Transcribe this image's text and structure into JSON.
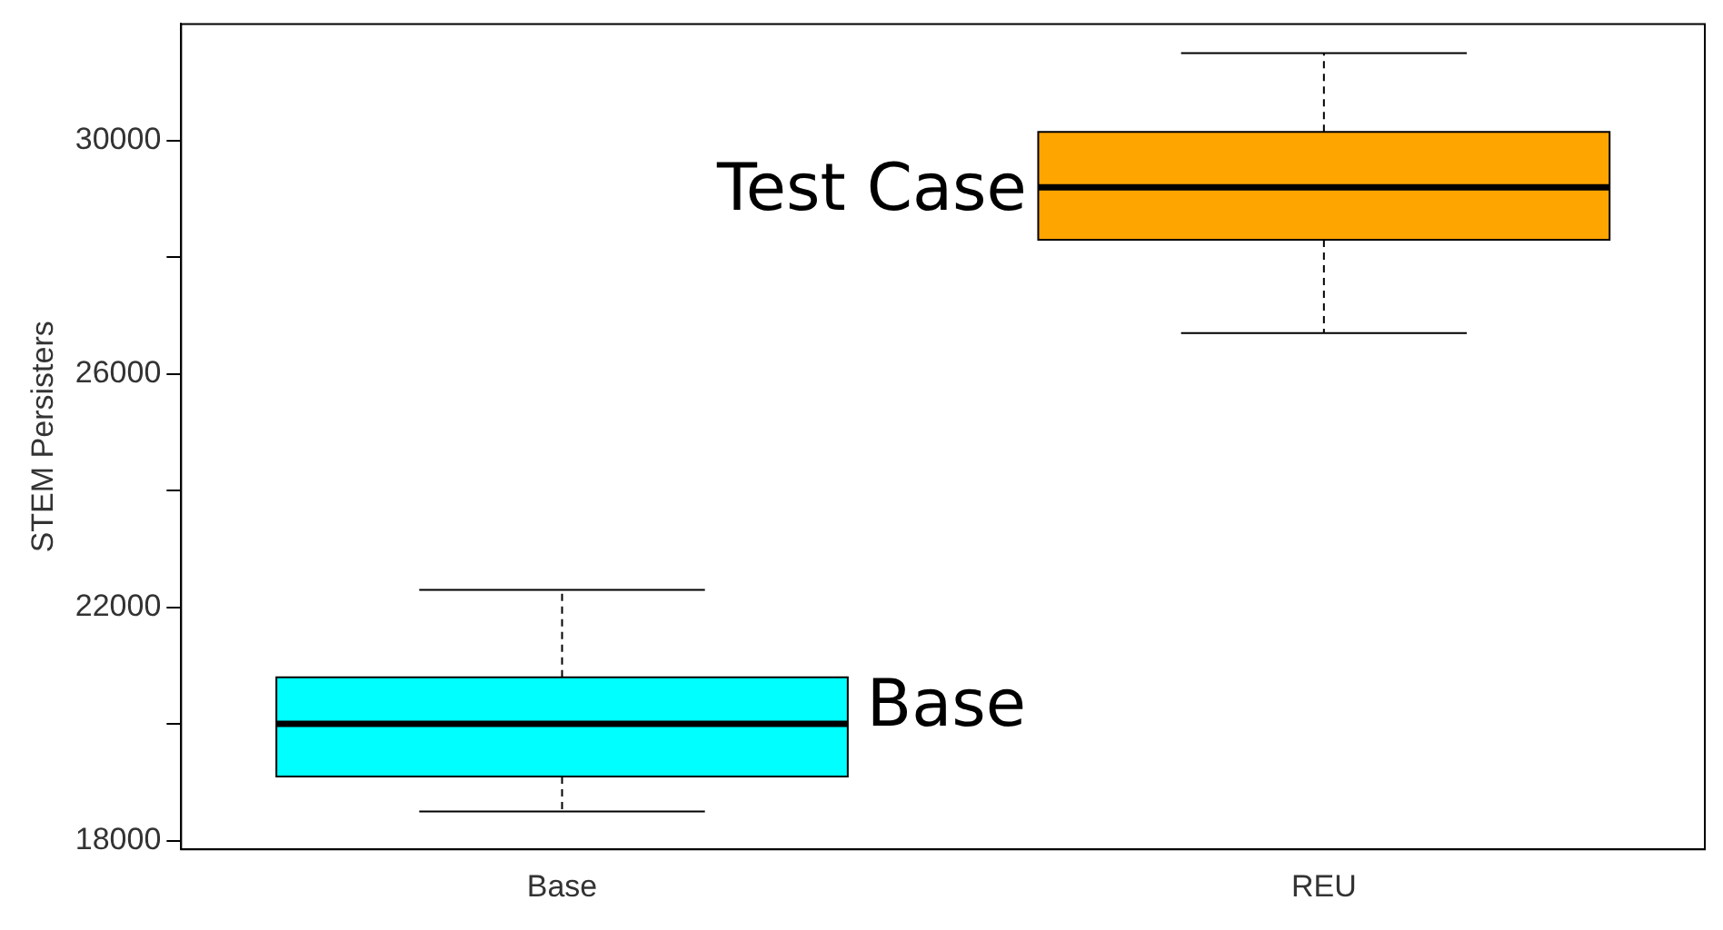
{
  "chart_data": {
    "type": "box",
    "ylabel": "STEM Persisters",
    "categories": [
      "Base",
      "REU"
    ],
    "boxes": [
      {
        "low": 18500,
        "q1": 19100,
        "median": 20000,
        "q3": 20800,
        "high": 22300
      },
      {
        "low": 26700,
        "q1": 28300,
        "median": 29200,
        "q3": 30150,
        "high": 31500
      }
    ],
    "colors": [
      "#00ffff",
      "#ffa500"
    ],
    "ylim": [
      17850,
      32000
    ],
    "yticks": [
      18000,
      {
        "value": 20000,
        "label": null
      },
      22000,
      {
        "value": 24000,
        "label": null
      },
      26000,
      {
        "value": 28000,
        "label": null
      },
      30000
    ],
    "grid": false,
    "annotations": [
      "Test Case",
      "Base"
    ]
  }
}
